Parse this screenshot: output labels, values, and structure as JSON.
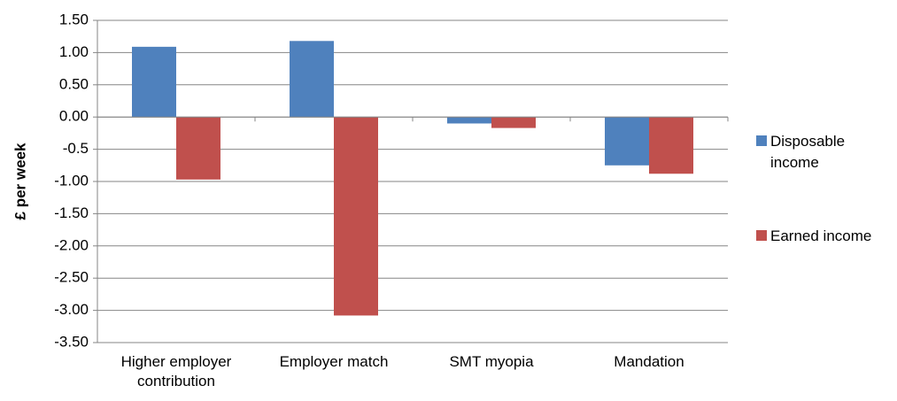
{
  "chart_data": {
    "type": "bar",
    "y_label": "£ per week",
    "categories": [
      "Higher employer contribution",
      "Employer match",
      "SMT myopia",
      "Mandation"
    ],
    "series": [
      {
        "name": "Disposable income",
        "color": "#4f81bd",
        "values": [
          1.09,
          1.18,
          -0.1,
          -0.75
        ]
      },
      {
        "name": "Earned income",
        "color": "#c0504d",
        "values": [
          -0.97,
          -3.08,
          -0.17,
          -0.88
        ]
      }
    ],
    "ylim": [
      -3.5,
      1.5
    ],
    "yticks": [
      {
        "value": 1.5,
        "label": "1.50"
      },
      {
        "value": 1,
        "label": "1.00"
      },
      {
        "value": 0.5,
        "label": "0.50"
      },
      {
        "value": 0,
        "label": "0.00"
      },
      -0.5,
      {
        "value": -1,
        "label": "-1.00"
      },
      {
        "value": -1.5,
        "label": "-1.50"
      },
      {
        "value": -2,
        "label": "-2.00"
      },
      {
        "value": -2.5,
        "label": "-2.50"
      },
      {
        "value": -3,
        "label": "-3.00"
      },
      {
        "value": -3.5,
        "label": "-3.50"
      }
    ],
    "grid": true,
    "legend": "right"
  }
}
